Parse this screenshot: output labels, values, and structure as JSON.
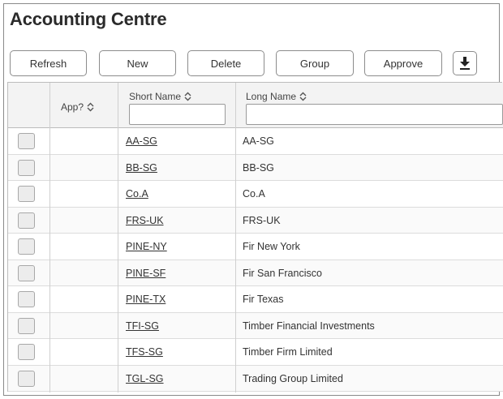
{
  "page": {
    "title": "Accounting Centre"
  },
  "toolbar": {
    "refresh_label": "Refresh",
    "new_label": "New",
    "delete_label": "Delete",
    "group_label": "Group",
    "approve_label": "Approve",
    "download_icon": "download-icon"
  },
  "table": {
    "columns": {
      "app": "App?",
      "short_name": "Short Name",
      "long_name": "Long Name"
    },
    "filters": {
      "short_name": "",
      "long_name": ""
    },
    "rows": [
      {
        "short": "AA-SG",
        "long": "AA-SG"
      },
      {
        "short": "BB-SG",
        "long": "BB-SG"
      },
      {
        "short": "Co.A",
        "long": "Co.A"
      },
      {
        "short": "FRS-UK",
        "long": "FRS-UK"
      },
      {
        "short": "PINE-NY",
        "long": "Fir New York"
      },
      {
        "short": "PINE-SF",
        "long": "Fir San Francisco"
      },
      {
        "short": "PINE-TX",
        "long": "Fir Texas"
      },
      {
        "short": "TFI-SG",
        "long": "Timber Financial Investments"
      },
      {
        "short": "TFS-SG",
        "long": "Timber Firm Limited"
      },
      {
        "short": "TGL-SG",
        "long": "Trading Group Limited"
      }
    ]
  }
}
